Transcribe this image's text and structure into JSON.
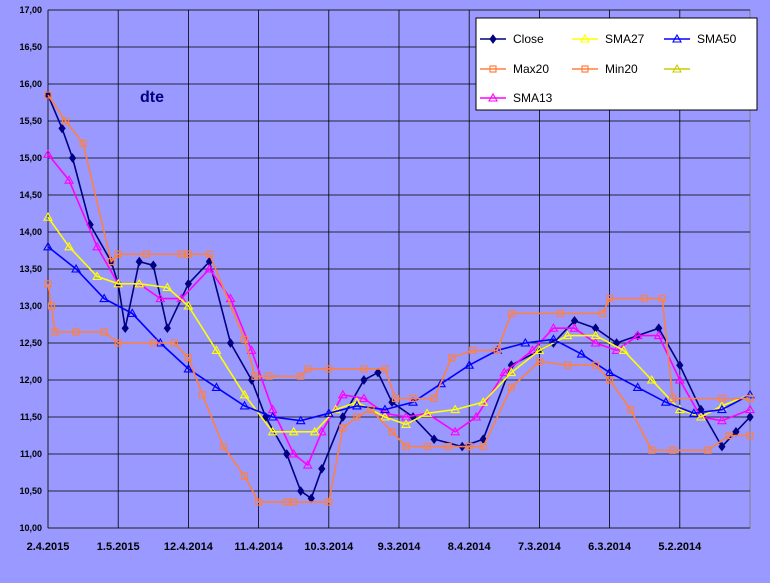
{
  "chart_data": {
    "type": "line",
    "title": "dte",
    "xlabel": "",
    "ylabel": "",
    "ylim": [
      10.0,
      17.0
    ],
    "y_ticks": [
      "10,00",
      "10,50",
      "11,00",
      "11,50",
      "12,00",
      "12,50",
      "13,00",
      "13,50",
      "14,00",
      "14,50",
      "15,00",
      "15,50",
      "16,00",
      "16,50",
      "17,00"
    ],
    "x_ticks": [
      "2.4.2015",
      "1.5.2015",
      "12.4.2014",
      "11.4.2014",
      "10.3.2014",
      "9.3.2014",
      "8.4.2014",
      "7.3.2014",
      "6.3.2014",
      "5.2.2014"
    ],
    "x_range": [
      0,
      10
    ],
    "grid": true,
    "legend_position": "top-right",
    "legend": [
      {
        "name": "Close",
        "color": "#000080",
        "marker": "diamond"
      },
      {
        "name": "SMA27",
        "color": "#ffff00",
        "marker": "triangle"
      },
      {
        "name": "SMA50",
        "color": "#0000ff",
        "marker": "triangle"
      },
      {
        "name": "Max20",
        "color": "#ff8040",
        "marker": "square"
      },
      {
        "name": "Min20",
        "color": "#ff8040",
        "marker": "square"
      },
      {
        "name": "",
        "color": "#cccc00",
        "marker": "triangle"
      },
      {
        "name": "SMA13",
        "color": "#ff00ff",
        "marker": "triangle"
      }
    ],
    "series": [
      {
        "name": "Close",
        "color": "#000080",
        "x": [
          0,
          0.2,
          0.35,
          0.6,
          0.9,
          1.0,
          1.1,
          1.3,
          1.5,
          1.7,
          2.0,
          2.3,
          2.6,
          2.9,
          3.1,
          3.4,
          3.6,
          3.75,
          3.9,
          4.2,
          4.5,
          4.7,
          4.9,
          5.2,
          5.5,
          5.9,
          6.2,
          6.6,
          7.0,
          7.2,
          7.5,
          7.8,
          8.1,
          8.4,
          8.7,
          9.0,
          9.3,
          9.6,
          9.8,
          10.0
        ],
        "values": [
          15.85,
          15.4,
          15.0,
          14.1,
          13.6,
          13.3,
          12.7,
          13.6,
          13.55,
          12.7,
          13.3,
          13.6,
          12.5,
          12.0,
          11.5,
          11.0,
          10.5,
          10.4,
          10.8,
          11.5,
          12.0,
          12.1,
          11.7,
          11.5,
          11.2,
          11.1,
          11.2,
          12.2,
          12.4,
          12.5,
          12.8,
          12.7,
          12.5,
          12.6,
          12.7,
          12.2,
          11.6,
          11.1,
          11.3,
          11.5
        ]
      },
      {
        "name": "SMA13",
        "color": "#ff00ff",
        "x": [
          0,
          0.3,
          0.7,
          1.0,
          1.3,
          1.6,
          1.9,
          2.3,
          2.6,
          2.9,
          3.2,
          3.5,
          3.7,
          3.9,
          4.2,
          4.5,
          4.8,
          5.1,
          5.4,
          5.8,
          6.1,
          6.5,
          6.9,
          7.2,
          7.5,
          7.8,
          8.1,
          8.4,
          8.7,
          9.0,
          9.3,
          9.6,
          10.0
        ],
        "values": [
          15.05,
          14.7,
          13.8,
          13.3,
          13.3,
          13.1,
          13.1,
          13.5,
          13.1,
          12.4,
          11.6,
          11.0,
          10.85,
          11.3,
          11.8,
          11.75,
          11.55,
          11.5,
          11.55,
          11.3,
          11.5,
          12.1,
          12.4,
          12.7,
          12.7,
          12.5,
          12.4,
          12.6,
          12.6,
          12.0,
          11.5,
          11.45,
          11.6
        ]
      },
      {
        "name": "SMA27",
        "color": "#ffff00",
        "x": [
          0,
          0.3,
          0.7,
          1.0,
          1.3,
          1.7,
          2.0,
          2.4,
          2.8,
          3.2,
          3.5,
          3.8,
          4.1,
          4.4,
          4.8,
          5.1,
          5.4,
          5.8,
          6.2,
          6.6,
          7.0,
          7.4,
          7.8,
          8.2,
          8.6,
          9.0,
          9.3,
          9.6,
          10.0
        ],
        "values": [
          14.2,
          13.8,
          13.4,
          13.3,
          13.3,
          13.25,
          13.0,
          12.4,
          11.8,
          11.3,
          11.3,
          11.3,
          11.6,
          11.7,
          11.5,
          11.4,
          11.55,
          11.6,
          11.7,
          12.1,
          12.4,
          12.6,
          12.6,
          12.4,
          12.0,
          11.6,
          11.5,
          11.65,
          11.8
        ]
      },
      {
        "name": "SMA50",
        "color": "#0000ff",
        "x": [
          0,
          0.4,
          0.8,
          1.2,
          1.6,
          2.0,
          2.4,
          2.8,
          3.2,
          3.6,
          4.0,
          4.4,
          4.8,
          5.2,
          5.6,
          6.0,
          6.4,
          6.8,
          7.2,
          7.6,
          8.0,
          8.4,
          8.8,
          9.2,
          9.6,
          10.0
        ],
        "values": [
          13.8,
          13.5,
          13.1,
          12.9,
          12.5,
          12.15,
          11.9,
          11.65,
          11.5,
          11.45,
          11.55,
          11.65,
          11.6,
          11.7,
          11.95,
          12.2,
          12.4,
          12.5,
          12.55,
          12.35,
          12.1,
          11.9,
          11.7,
          11.55,
          11.6,
          11.8
        ]
      },
      {
        "name": "Max20",
        "color": "#ff8040",
        "x": [
          0,
          0.25,
          0.5,
          0.9,
          1.0,
          1.4,
          1.9,
          2.0,
          2.3,
          2.8,
          2.95,
          3.15,
          3.6,
          3.7,
          4.0,
          4.5,
          4.8,
          4.95,
          5.2,
          5.5,
          5.75,
          6.05,
          6.4,
          6.6,
          7.3,
          7.9,
          8.0,
          8.5,
          8.75,
          8.9,
          9.6,
          10.0
        ],
        "values": [
          15.85,
          15.5,
          15.2,
          13.6,
          13.7,
          13.7,
          13.7,
          13.7,
          13.7,
          12.55,
          12.05,
          12.05,
          12.05,
          12.15,
          12.15,
          12.15,
          12.15,
          11.75,
          11.75,
          11.75,
          12.3,
          12.4,
          12.4,
          12.9,
          12.9,
          12.9,
          13.1,
          13.1,
          13.1,
          11.75,
          11.75,
          11.75
        ]
      },
      {
        "name": "Min20",
        "color": "#ff8040",
        "x": [
          0,
          0.05,
          0.1,
          0.4,
          0.8,
          1.0,
          1.5,
          1.8,
          2.0,
          2.2,
          2.5,
          2.8,
          3.0,
          3.4,
          3.5,
          4.0,
          4.2,
          4.4,
          4.6,
          4.9,
          5.1,
          5.4,
          5.7,
          6.0,
          6.2,
          6.6,
          7.0,
          7.4,
          7.8,
          8.0,
          8.3,
          8.6,
          8.9,
          9.4,
          9.7,
          10.0
        ],
        "values": [
          13.3,
          13.0,
          12.65,
          12.65,
          12.65,
          12.5,
          12.5,
          12.5,
          12.3,
          11.8,
          11.1,
          10.7,
          10.35,
          10.35,
          10.35,
          10.35,
          11.35,
          11.5,
          11.6,
          11.3,
          11.1,
          11.1,
          11.1,
          11.1,
          11.1,
          11.9,
          12.25,
          12.2,
          12.2,
          12.0,
          11.6,
          11.05,
          11.05,
          11.05,
          11.25,
          11.25
        ]
      }
    ]
  }
}
